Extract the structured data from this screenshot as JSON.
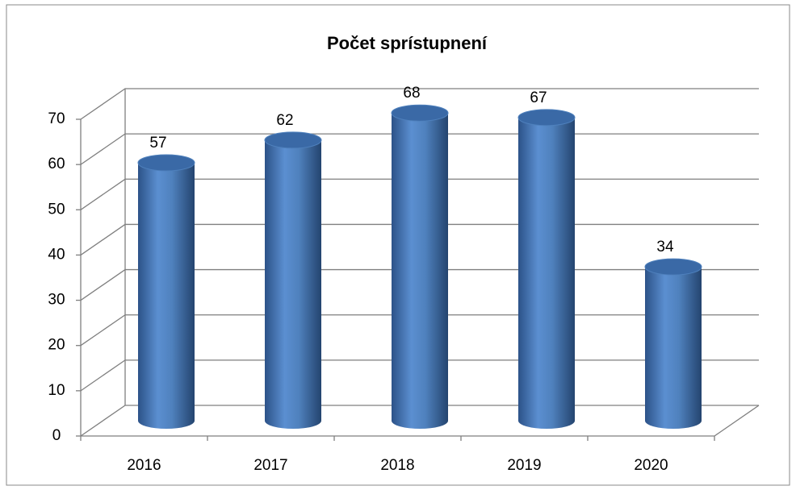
{
  "chart_data": {
    "type": "bar3d",
    "title": "Počet sprístupnení",
    "categories": [
      "2016",
      "2017",
      "2018",
      "2019",
      "2020"
    ],
    "values": [
      57,
      62,
      68,
      67,
      34
    ],
    "color": "#4f81bd",
    "ylim": [
      0,
      70
    ],
    "yticks": [
      0,
      10,
      20,
      30,
      40,
      50,
      60,
      70
    ],
    "grid": true
  }
}
